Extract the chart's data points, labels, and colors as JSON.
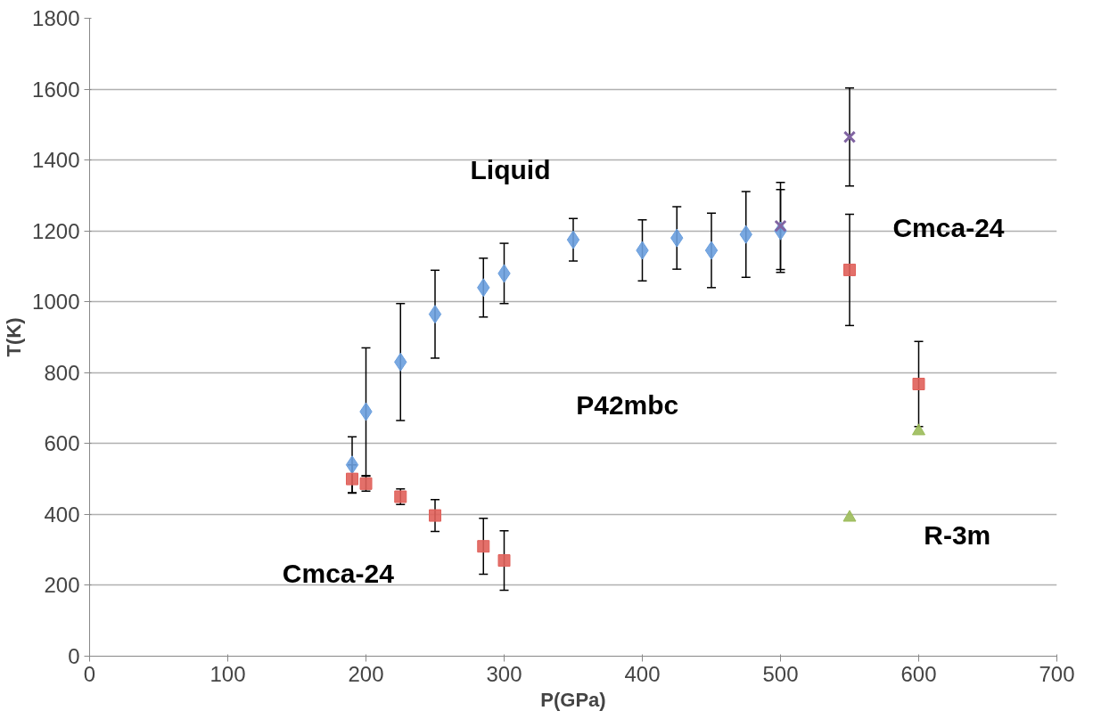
{
  "chart_data": {
    "type": "scatter",
    "xlabel": "P(GPa)",
    "ylabel": "T(K)",
    "xlim": [
      0,
      700
    ],
    "ylim": [
      0,
      1800
    ],
    "xticks": [
      0,
      100,
      200,
      300,
      400,
      500,
      600,
      700
    ],
    "yticks": [
      0,
      200,
      400,
      600,
      800,
      1000,
      1200,
      1400,
      1600,
      1800
    ],
    "grid": "y",
    "series": [
      {
        "color": "#6a9fde",
        "marker": "diamond",
        "x": [
          190,
          200,
          225,
          250,
          285,
          300,
          350,
          400,
          425,
          450,
          475,
          500
        ],
        "values": [
          540,
          690,
          830,
          965,
          1040,
          1080,
          1175,
          1145,
          1180,
          1145,
          1190,
          1200
        ],
        "errors": [
          79,
          180,
          165,
          124,
          83,
          85,
          60,
          86,
          88,
          105,
          121,
          117
        ]
      },
      {
        "color": "#e0605a",
        "marker": "square",
        "x": [
          190,
          200,
          225,
          250,
          285,
          300,
          550,
          600
        ],
        "values": [
          500,
          487,
          450,
          397,
          310,
          270,
          1090,
          768
        ],
        "errors": [
          40,
          21,
          22,
          45,
          79,
          84,
          157,
          120
        ]
      },
      {
        "color": "#9bbb59",
        "marker": "triangle",
        "x": [
          550,
          600
        ],
        "values": [
          391,
          635
        ]
      },
      {
        "color": "#8064a2",
        "marker": "cross",
        "x": [
          500,
          550
        ],
        "values": [
          1214,
          1465
        ],
        "errors": [
          123,
          138
        ]
      }
    ],
    "annotations": [
      "Liquid",
      "P42mbc",
      "Cmca-24",
      "Cmca-24",
      "R-3m"
    ]
  }
}
